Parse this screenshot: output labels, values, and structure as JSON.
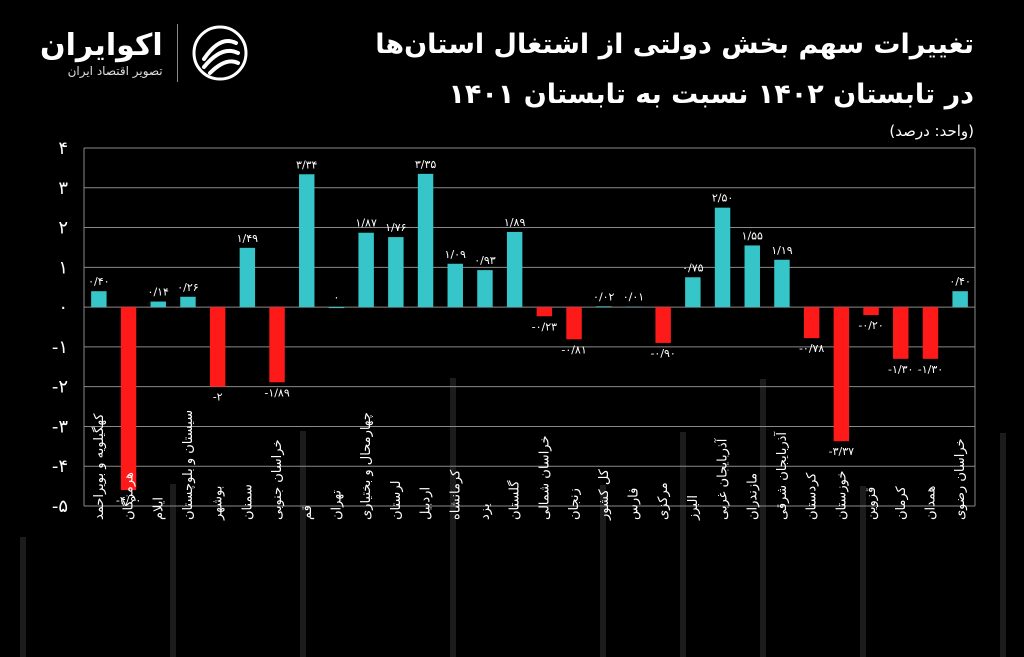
{
  "header": {
    "title_line1": "تغییرات سهم بخش دولتی از اشتغال استان‌ها",
    "title_line2": "در تابستان ۱۴۰۲ نسبت به تابستان ۱۴۰۱",
    "unit": "(واحد: درصد)"
  },
  "logo": {
    "name": "اکوایران",
    "tagline": "تصویر اقتصاد ایران"
  },
  "colors": {
    "positive": "#36c5c9",
    "negative": "#ff1a1a",
    "grid": "#8a8a8a",
    "background": "#000000"
  },
  "chart_data": {
    "type": "bar",
    "title": "تغییرات سهم بخش دولتی از اشتغال استان‌ها در تابستان ۱۴۰۲ نسبت به تابستان ۱۴۰۱",
    "ylabel": "(واحد: درصد)",
    "ylim": [
      -5,
      4
    ],
    "yticks": [
      4,
      3,
      2,
      1,
      0,
      -1,
      -2,
      -3,
      -4,
      -5
    ],
    "ytick_labels": [
      "۴",
      "۳",
      "۲",
      "۱",
      "۰",
      "-۱",
      "-۲",
      "-۳",
      "-۴",
      "-۵"
    ],
    "grid": true,
    "categories": [
      "کهگیلویه و بویراحمد",
      "هرمزگان",
      "ایلام",
      "سیستان و بلوچستان",
      "بوشهر",
      "سمنان",
      "خراسان جنوبی",
      "قم",
      "تهران",
      "چهارمحال و بختیاری",
      "لرستان",
      "اردبیل",
      "کرمانشاه",
      "یزد",
      "گلستان",
      "خراسان شمالی",
      "زنجان",
      "کل کشور",
      "فارس",
      "مرکزی",
      "البرز",
      "آذربایجان غربی",
      "مازندران",
      "آذربایجان شرقی",
      "کردستان",
      "خوزستان",
      "قزوین",
      "کرمان",
      "همدان",
      "خراسان رضوی"
    ],
    "values": [
      0.4,
      -4.6,
      0.14,
      0.26,
      -2.0,
      1.49,
      -1.89,
      3.34,
      0,
      1.87,
      1.76,
      3.35,
      1.09,
      0.93,
      1.89,
      -0.23,
      -0.81,
      0.02,
      0.01,
      -0.9,
      0.75,
      2.5,
      1.55,
      1.19,
      -0.78,
      -3.37,
      -0.2,
      -1.3,
      -1.3,
      0.4
    ],
    "value_labels": [
      "۰/۴۰",
      "-۴/۶۰",
      "۰/۱۴",
      "۰/۲۶",
      "-۲",
      "۱/۴۹",
      "-۱/۸۹",
      "۳/۳۴",
      "۰",
      "۱/۸۷",
      "۱/۷۶",
      "۳/۳۵",
      "۱/۰۹",
      "۰/۹۳",
      "۱/۸۹",
      "-۰/۲۳",
      "-۰/۸۱",
      "۰/۰۲",
      "۰/۰۱",
      "-۰/۹۰",
      "۰/۷۵",
      "۲/۵۰",
      "۱/۵۵",
      "۱/۱۹",
      "-۰/۷۸",
      "-۳/۳۷",
      "-۰/۲۰",
      "-۱/۳۰",
      "-۱/۳۰",
      "۰/۴۰"
    ]
  }
}
